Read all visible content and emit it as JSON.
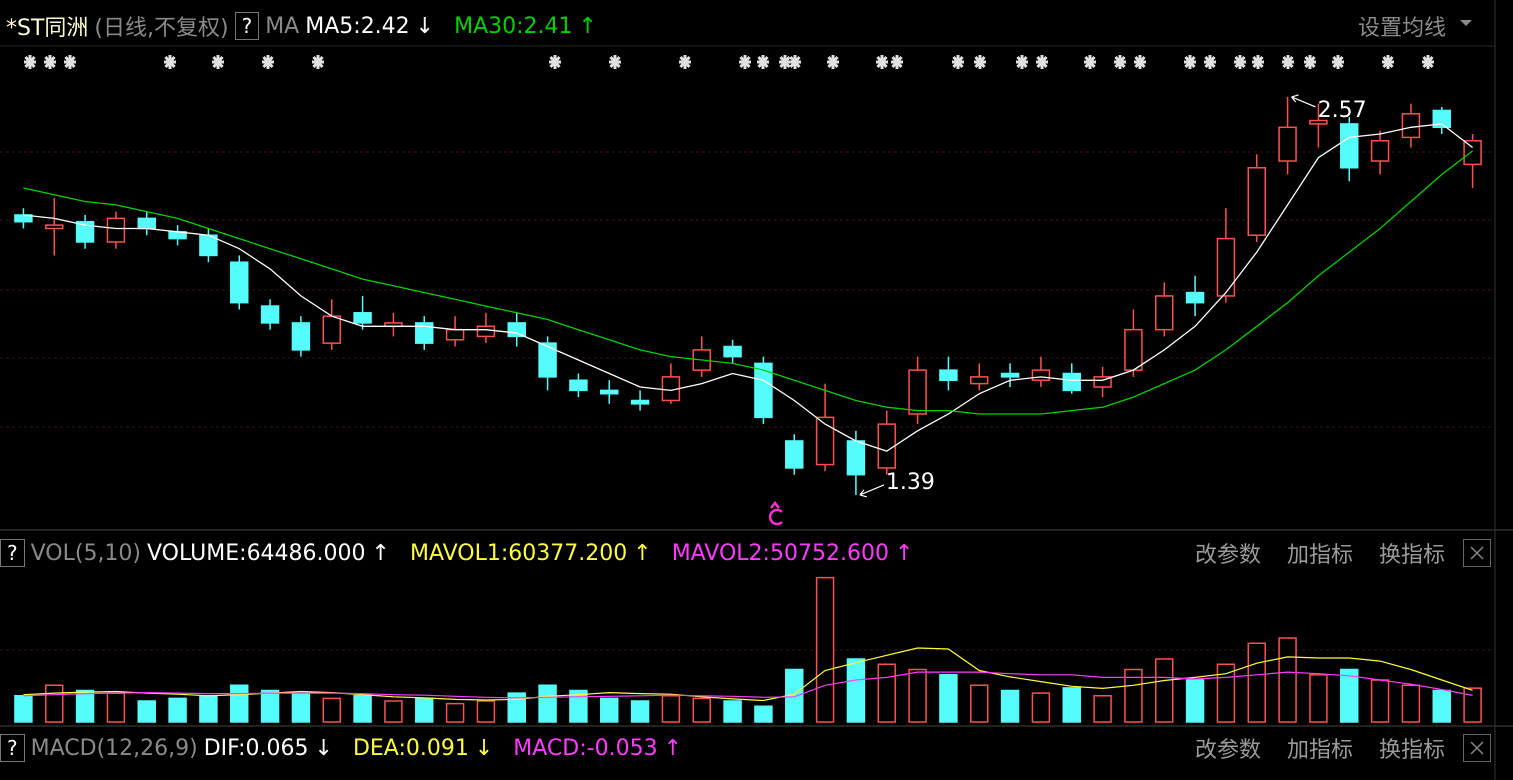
{
  "chart_data": [
    {
      "type": "candlestick",
      "title": "*ST同洲",
      "subtitle": "(日线,不复权)",
      "help": "?",
      "indicator": "MA",
      "settings_button": "设置均线",
      "up_color": "#ff5050",
      "down_color": "#54fcfc",
      "ylim": [
        1.286,
        2.724
      ],
      "open": [
        2.22,
        2.18,
        2.2,
        2.14,
        2.21,
        2.17,
        2.16,
        2.08,
        1.95,
        1.9,
        1.84,
        1.93,
        1.89,
        1.9,
        1.85,
        1.86,
        1.9,
        1.84,
        1.73,
        1.7,
        1.67,
        1.67,
        1.76,
        1.83,
        1.78,
        1.55,
        1.48,
        1.55,
        1.47,
        1.63,
        1.76,
        1.72,
        1.75,
        1.73,
        1.75,
        1.71,
        1.76,
        1.88,
        1.99,
        1.98,
        2.16,
        2.38,
        2.49,
        2.49,
        2.38,
        2.45,
        2.53,
        2.37
      ],
      "high": [
        2.24,
        2.27,
        2.22,
        2.23,
        2.23,
        2.19,
        2.18,
        2.1,
        1.97,
        1.92,
        1.97,
        1.98,
        1.93,
        1.92,
        1.92,
        1.93,
        1.93,
        1.86,
        1.75,
        1.73,
        1.7,
        1.78,
        1.86,
        1.85,
        1.8,
        1.57,
        1.72,
        1.58,
        1.64,
        1.8,
        1.8,
        1.78,
        1.78,
        1.8,
        1.78,
        1.77,
        1.94,
        2.02,
        2.04,
        2.24,
        2.4,
        2.57,
        2.55,
        2.51,
        2.47,
        2.55,
        2.54,
        2.46
      ],
      "low": [
        2.18,
        2.1,
        2.12,
        2.12,
        2.16,
        2.13,
        2.08,
        1.94,
        1.88,
        1.8,
        1.82,
        1.88,
        1.86,
        1.82,
        1.83,
        1.84,
        1.83,
        1.7,
        1.68,
        1.66,
        1.64,
        1.66,
        1.74,
        1.78,
        1.6,
        1.45,
        1.46,
        1.39,
        1.45,
        1.6,
        1.7,
        1.7,
        1.71,
        1.71,
        1.69,
        1.68,
        1.74,
        1.86,
        1.92,
        1.96,
        2.14,
        2.34,
        2.42,
        2.32,
        2.34,
        2.42,
        2.46,
        2.3
      ],
      "close": [
        2.2,
        2.19,
        2.14,
        2.21,
        2.18,
        2.15,
        2.1,
        1.96,
        1.9,
        1.82,
        1.92,
        1.9,
        1.9,
        1.84,
        1.88,
        1.89,
        1.86,
        1.74,
        1.7,
        1.69,
        1.66,
        1.74,
        1.82,
        1.8,
        1.62,
        1.47,
        1.62,
        1.45,
        1.6,
        1.76,
        1.73,
        1.74,
        1.74,
        1.76,
        1.7,
        1.74,
        1.88,
        1.98,
        1.96,
        2.15,
        2.36,
        2.48,
        2.5,
        2.36,
        2.44,
        2.52,
        2.48,
        2.44
      ],
      "series": [
        {
          "name": "MA5:",
          "color": "#ffffff",
          "trend": "↓",
          "values": [
            2.22,
            2.21,
            2.19,
            2.18,
            2.18,
            2.17,
            2.16,
            2.12,
            2.06,
            1.98,
            1.92,
            1.89,
            1.89,
            1.89,
            1.88,
            1.88,
            1.87,
            1.83,
            1.79,
            1.75,
            1.71,
            1.7,
            1.72,
            1.75,
            1.73,
            1.67,
            1.6,
            1.55,
            1.52,
            1.58,
            1.63,
            1.69,
            1.73,
            1.74,
            1.73,
            1.73,
            1.76,
            1.82,
            1.89,
            1.99,
            2.11,
            2.25,
            2.39,
            2.45,
            2.46,
            2.48,
            2.49,
            2.42
          ]
        },
        {
          "name": "MA30:",
          "color": "#00d200",
          "trend": "↑",
          "values": [
            2.3,
            2.28,
            2.26,
            2.25,
            2.23,
            2.21,
            2.18,
            2.15,
            2.12,
            2.09,
            2.06,
            2.03,
            2.01,
            1.99,
            1.97,
            1.95,
            1.93,
            1.91,
            1.88,
            1.85,
            1.82,
            1.8,
            1.79,
            1.78,
            1.76,
            1.73,
            1.7,
            1.67,
            1.65,
            1.64,
            1.64,
            1.63,
            1.63,
            1.63,
            1.64,
            1.65,
            1.68,
            1.72,
            1.76,
            1.82,
            1.89,
            1.96,
            2.04,
            2.11,
            2.18,
            2.26,
            2.34,
            2.41
          ]
        }
      ]
    },
    {
      "type": "bar",
      "title": "VOL(5,10)",
      "help": "?",
      "ylim": [
        0,
        280000
      ],
      "buttons": [
        "改参数",
        "加指标",
        "换指标"
      ],
      "volume": {
        "name": "VOLUME:",
        "color": "#ffffff",
        "trend": "↑",
        "last_label": "64486.000",
        "values": [
          50000,
          70000,
          60000,
          55000,
          40000,
          45000,
          50000,
          70000,
          60000,
          55000,
          45000,
          50000,
          40000,
          45000,
          35000,
          40000,
          55000,
          70000,
          60000,
          45000,
          40000,
          50000,
          45000,
          40000,
          30000,
          100000,
          275000,
          120000,
          110000,
          100000,
          90000,
          70000,
          60000,
          55000,
          65000,
          50000,
          100000,
          120000,
          80000,
          110000,
          150000,
          160000,
          90000,
          100000,
          80000,
          70000,
          60000,
          64486
        ]
      },
      "series": [
        {
          "name": "MAVOL1:",
          "color": "#ffff3c",
          "trend": "↑",
          "last_label": "60377.200",
          "values": [
            52000,
            55000,
            57000,
            58000,
            55000,
            53000,
            50000,
            52000,
            55000,
            58000,
            56000,
            52000,
            48000,
            46000,
            43000,
            42000,
            43000,
            49000,
            52000,
            56000,
            54000,
            53000,
            48000,
            44000,
            41000,
            53000,
            98000,
            113000,
            127000,
            141000,
            139000,
            98000,
            86000,
            77000,
            68000,
            64000,
            70000,
            79000,
            85000,
            92000,
            112000,
            124000,
            122000,
            122000,
            116000,
            100000,
            80000,
            60377.2
          ]
        },
        {
          "name": "MAVOL2:",
          "color": "#ff3cff",
          "trend": "↑",
          "last_label": "50752.600",
          "values": [
            50000,
            52000,
            54000,
            55000,
            56000,
            55000,
            54000,
            54000,
            55000,
            55000,
            55000,
            54000,
            52000,
            51000,
            49000,
            47000,
            46000,
            47000,
            48000,
            49000,
            50000,
            51000,
            50000,
            49000,
            47000,
            48000,
            70000,
            80000,
            85000,
            95000,
            95000,
            95000,
            92000,
            90000,
            90000,
            85000,
            85000,
            85000,
            82000,
            85000,
            90000,
            95000,
            92000,
            88000,
            80000,
            72000,
            62000,
            50752.6
          ]
        }
      ]
    },
    {
      "type": "indicator",
      "title": "MACD(12,26,9)",
      "help": "?",
      "buttons": [
        "改参数",
        "加指标",
        "换指标"
      ],
      "items": [
        {
          "name": "DIF:",
          "value": 0.065,
          "trend": "↓",
          "color": "#ffffff"
        },
        {
          "name": "DEA:",
          "value": 0.091,
          "trend": "↓",
          "color": "#ffff3c"
        },
        {
          "name": "MACD:",
          "value": -0.053,
          "trend": "↑",
          "color": "#ff3cff"
        }
      ]
    }
  ]
}
